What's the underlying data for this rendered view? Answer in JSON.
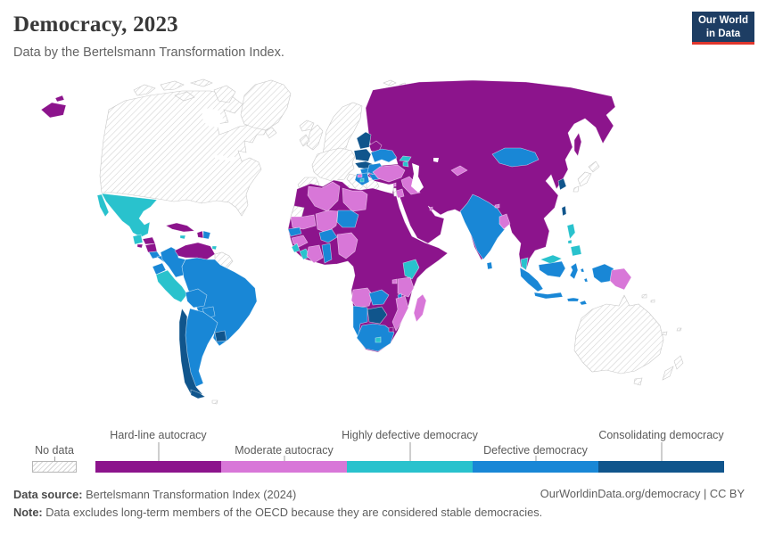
{
  "header": {
    "title": "Democracy, 2023",
    "subtitle": "Data by the Bertelsmann Transformation Index.",
    "logo": {
      "line1": "Our World",
      "line2": "in Data",
      "bg": "#1d3d63",
      "accent": "#e0362c"
    }
  },
  "legend": {
    "no_data_label": "No data",
    "categories": [
      {
        "id": "hardline",
        "label": "Hard-line autocracy",
        "color": "#8C148C"
      },
      {
        "id": "moderate",
        "label": "Moderate autocracy",
        "color": "#D877D8"
      },
      {
        "id": "highly-defective",
        "label": "Highly defective democracy",
        "color": "#29C2CD"
      },
      {
        "id": "defective",
        "label": "Defective democracy",
        "color": "#1987D6"
      },
      {
        "id": "consolidating",
        "label": "Consolidating democracy",
        "color": "#10558C"
      }
    ]
  },
  "footer": {
    "source_label": "Data source:",
    "source_text": " Bertelsmann Transformation Index (2024)",
    "note_label": "Note:",
    "note_text": " Data excludes long-term members of the OECD because they are considered stable democracies.",
    "credit": "OurWorldinData.org/democracy | CC BY"
  },
  "map": {
    "palette": {
      "hardline": "#8C148C",
      "moderate": "#D877D8",
      "highly_defective": "#29C2CD",
      "defective": "#1987D6",
      "consolidating": "#10558C",
      "water": "#ffffff",
      "no_data_border": "#c8c8c8",
      "land_border": "rgba(255,255,255,0.65)"
    },
    "regions": [
      {
        "name": "canada-usa",
        "category": "no_data"
      },
      {
        "name": "arctic-islands",
        "category": "no_data"
      },
      {
        "name": "newfoundland",
        "category": "no_data"
      },
      {
        "name": "greenland",
        "category": "no_data"
      },
      {
        "name": "iceland",
        "category": "no_data"
      },
      {
        "name": "hudson-bay",
        "category": "water"
      },
      {
        "name": "great-lakes",
        "category": "water"
      },
      {
        "name": "russia-far-east",
        "category": "hardline"
      },
      {
        "name": "mexico",
        "category": "highly_defective"
      },
      {
        "name": "guatemala",
        "category": "highly_defective"
      },
      {
        "name": "honduras",
        "category": "hardline"
      },
      {
        "name": "el-salvador",
        "category": "hardline"
      },
      {
        "name": "nicaragua",
        "category": "hardline"
      },
      {
        "name": "costa-rica",
        "category": "defective"
      },
      {
        "name": "panama",
        "category": "defective"
      },
      {
        "name": "cuba",
        "category": "hardline"
      },
      {
        "name": "jamaica",
        "category": "highly_defective"
      },
      {
        "name": "haiti",
        "category": "hardline"
      },
      {
        "name": "dominican-republic",
        "category": "defective"
      },
      {
        "name": "trinidad",
        "category": "highly_defective"
      },
      {
        "name": "colombia",
        "category": "defective"
      },
      {
        "name": "venezuela",
        "category": "hardline"
      },
      {
        "name": "guianas",
        "category": "no_data"
      },
      {
        "name": "ecuador",
        "category": "defective"
      },
      {
        "name": "peru",
        "category": "highly_defective"
      },
      {
        "name": "brazil",
        "category": "defective"
      },
      {
        "name": "bolivia",
        "category": "defective"
      },
      {
        "name": "paraguay",
        "category": "defective"
      },
      {
        "name": "argentina",
        "category": "defective"
      },
      {
        "name": "chile",
        "category": "consolidating"
      },
      {
        "name": "uruguay",
        "category": "consolidating"
      },
      {
        "name": "falkland-islands",
        "category": "no_data"
      },
      {
        "name": "scandinavia",
        "category": "no_data"
      },
      {
        "name": "denmark",
        "category": "no_data"
      },
      {
        "name": "uk",
        "category": "no_data"
      },
      {
        "name": "ireland",
        "category": "no_data"
      },
      {
        "name": "west-europe",
        "category": "no_data"
      },
      {
        "name": "iberia",
        "category": "no_data"
      },
      {
        "name": "italy",
        "category": "no_data"
      },
      {
        "name": "greece",
        "category": "no_data"
      },
      {
        "name": "svalbard",
        "category": "no_data"
      },
      {
        "name": "asia-mainland",
        "category": "hardline"
      },
      {
        "name": "sakhalin",
        "category": "hardline"
      },
      {
        "name": "africa-mainland",
        "category": "hardline"
      },
      {
        "name": "baltics",
        "category": "consolidating"
      },
      {
        "name": "poland",
        "category": "consolidating"
      },
      {
        "name": "czechia-slovakia",
        "category": "consolidating"
      },
      {
        "name": "belarus",
        "category": "hardline"
      },
      {
        "name": "ukraine",
        "category": "defective"
      },
      {
        "name": "hungary",
        "category": "defective"
      },
      {
        "name": "romania",
        "category": "defective"
      },
      {
        "name": "bulgaria",
        "category": "defective"
      },
      {
        "name": "balkans",
        "category": "defective"
      },
      {
        "name": "bosnia",
        "category": "moderate"
      },
      {
        "name": "montenegro",
        "category": "highly_defective"
      },
      {
        "name": "turkey",
        "category": "moderate"
      },
      {
        "name": "georgia",
        "category": "highly_defective"
      },
      {
        "name": "armenia",
        "category": "highly_defective"
      },
      {
        "name": "iraq",
        "category": "moderate"
      },
      {
        "name": "jordan",
        "category": "moderate"
      },
      {
        "name": "lebanon",
        "category": "moderate"
      },
      {
        "name": "israel",
        "category": "no_data"
      },
      {
        "name": "qatar",
        "category": "moderate"
      },
      {
        "name": "caspian-sea",
        "category": "water"
      },
      {
        "name": "aral-sea",
        "category": "water"
      },
      {
        "name": "kyrgyzstan",
        "category": "moderate"
      },
      {
        "name": "mongolia",
        "category": "defective"
      },
      {
        "name": "india",
        "category": "defective"
      },
      {
        "name": "bangladesh",
        "category": "moderate"
      },
      {
        "name": "bhutan",
        "category": "moderate"
      },
      {
        "name": "sri-lanka",
        "category": "defective"
      },
      {
        "name": "south-korea",
        "category": "consolidating"
      },
      {
        "name": "taiwan",
        "category": "consolidating"
      },
      {
        "name": "japan",
        "category": "no_data"
      },
      {
        "name": "western-sahara",
        "category": "no_data"
      },
      {
        "name": "algeria",
        "category": "moderate"
      },
      {
        "name": "libya",
        "category": "moderate"
      },
      {
        "name": "mauritania",
        "category": "moderate"
      },
      {
        "name": "mali",
        "category": "moderate"
      },
      {
        "name": "niger",
        "category": "defective"
      },
      {
        "name": "senegal",
        "category": "defective"
      },
      {
        "name": "guinea",
        "category": "moderate"
      },
      {
        "name": "sierra-leone",
        "category": "highly_defective"
      },
      {
        "name": "liberia",
        "category": "highly_defective"
      },
      {
        "name": "cote-divoire",
        "category": "moderate"
      },
      {
        "name": "burkina-faso",
        "category": "defective"
      },
      {
        "name": "ghana",
        "category": "defective"
      },
      {
        "name": "nigeria",
        "category": "moderate"
      },
      {
        "name": "kenya",
        "category": "highly_defective"
      },
      {
        "name": "rwanda-burundi",
        "category": "moderate"
      },
      {
        "name": "tanzania",
        "category": "moderate"
      },
      {
        "name": "angola",
        "category": "moderate"
      },
      {
        "name": "zambia",
        "category": "defective"
      },
      {
        "name": "malawi",
        "category": "defective"
      },
      {
        "name": "mozambique",
        "category": "moderate"
      },
      {
        "name": "botswana",
        "category": "consolidating"
      },
      {
        "name": "namibia",
        "category": "defective"
      },
      {
        "name": "south-africa",
        "category": "defective"
      },
      {
        "name": "lesotho",
        "category": "highly_defective"
      },
      {
        "name": "eswatini",
        "category": "hardline"
      },
      {
        "name": "madagascar",
        "category": "moderate"
      },
      {
        "name": "philippines",
        "category": "highly_defective"
      },
      {
        "name": "malaysia",
        "category": "highly_defective"
      },
      {
        "name": "indonesia",
        "category": "defective"
      },
      {
        "name": "timor",
        "category": "defective"
      },
      {
        "name": "papua-new-guinea",
        "category": "moderate"
      },
      {
        "name": "australia",
        "category": "no_data"
      },
      {
        "name": "tasmania",
        "category": "no_data"
      },
      {
        "name": "new-zealand",
        "category": "no_data"
      },
      {
        "name": "pacific-islands",
        "category": "no_data"
      }
    ]
  }
}
